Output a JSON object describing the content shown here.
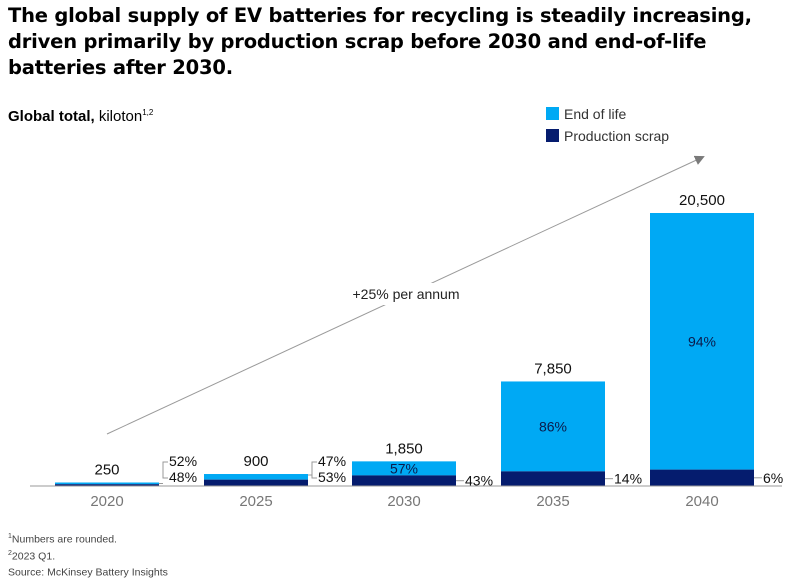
{
  "chart_data": {
    "type": "bar",
    "title": "The global supply of EV batteries for recycling is steadily increasing, driven primarily by production scrap before 2030 and end-of-life batteries after 2030.",
    "subtitle_bold": "Global total,",
    "subtitle_unit": "kiloton",
    "subtitle_sup": "1,2",
    "categories": [
      "2020",
      "2025",
      "2030",
      "2035",
      "2040"
    ],
    "totals": [
      250,
      900,
      1850,
      7850,
      20500
    ],
    "total_labels": [
      "250",
      "900",
      "1,850",
      "7,850",
      "20,500"
    ],
    "series": [
      {
        "name": "Production scrap",
        "color": "#051c6e",
        "share": [
          0.48,
          0.53,
          0.43,
          0.14,
          0.06
        ],
        "labels": [
          "48%",
          "53%",
          "43%",
          "14%",
          "6%"
        ]
      },
      {
        "name": "End of life",
        "color": "#00a9f4",
        "share": [
          0.52,
          0.47,
          0.57,
          0.86,
          0.94
        ],
        "labels": [
          "52%",
          "47%",
          "57%",
          "86%",
          "94%"
        ]
      }
    ],
    "legend": [
      "End of life",
      "Production scrap"
    ],
    "legend_position": "top-right",
    "ylim": [
      0,
      20500
    ],
    "grid": false,
    "annotation": "+25% per annum"
  },
  "footnotes": [
    {
      "sup": "1",
      "text": "Numbers are rounded."
    },
    {
      "sup": "2",
      "text": "2023 Q1."
    },
    {
      "sup": "",
      "text": "Source: McKinsey Battery Insights"
    }
  ]
}
